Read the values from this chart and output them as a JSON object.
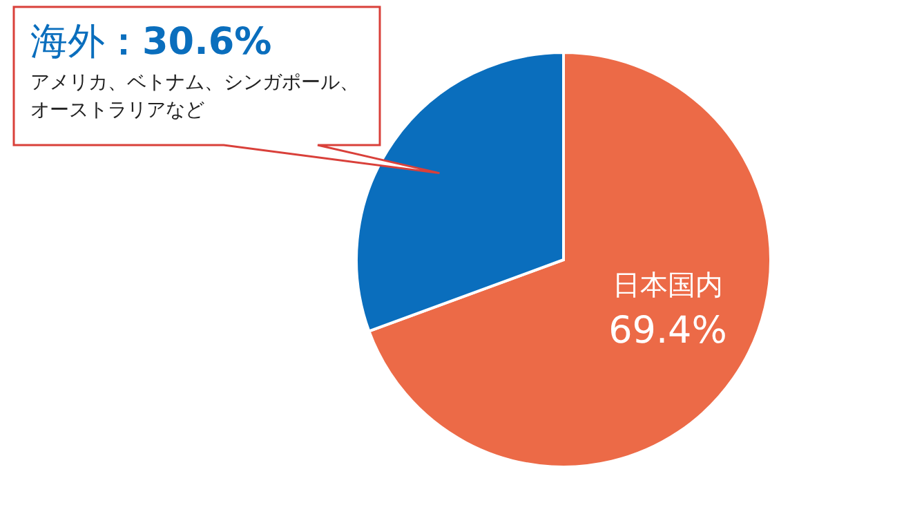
{
  "chart_data": {
    "type": "pie",
    "categories": [
      "日本国内",
      "海外"
    ],
    "values": [
      69.4,
      30.6
    ],
    "colors": [
      "#ec6a47",
      "#0a6ebd"
    ],
    "value_labels": [
      "69.4%",
      "：30.6%"
    ],
    "annotations": [
      "アメリカ、ベトナム、シンガポール、オーストラリアなど"
    ]
  }
}
